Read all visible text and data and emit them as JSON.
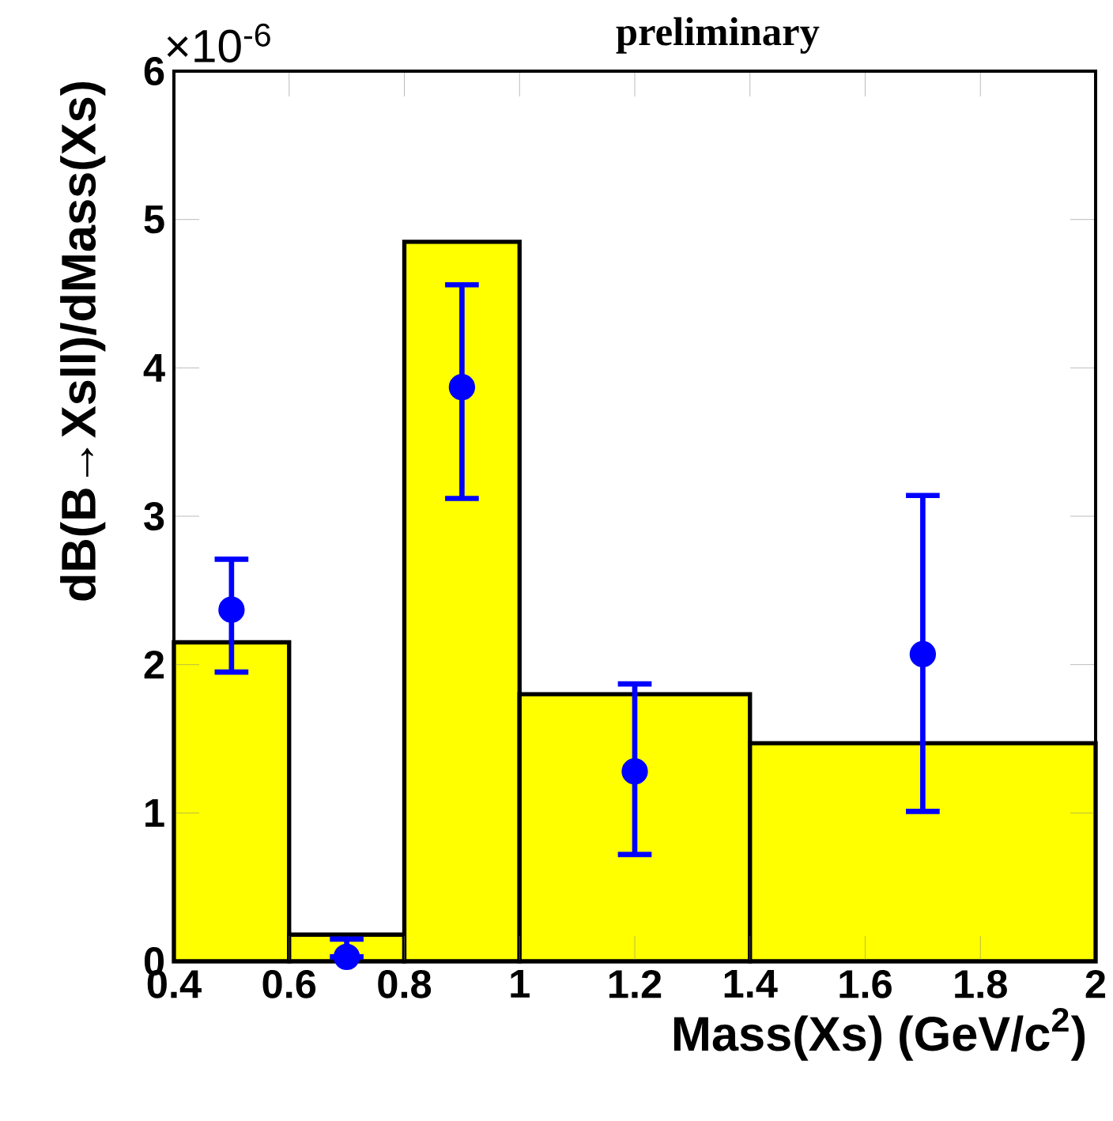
{
  "chart_data": {
    "type": "histogram",
    "xlabel": "Mass(Xs) (GeV/c$^{2}$)",
    "ylabel": "dB(B→Xsll)/dMass(Xs)",
    "bins": [
      0.4,
      0.6,
      0.8,
      1.0,
      1.4,
      2.0
    ],
    "values": [
      2.15,
      0.18,
      4.85,
      1.8,
      1.47
    ],
    "color": "#ffff00",
    "series": [
      {
        "type": "scatter",
        "color": "#0000ff",
        "x": [
          0.5,
          0.7,
          0.9,
          1.2,
          1.7
        ],
        "values": [
          2.37,
          0.03,
          3.87,
          1.28,
          2.07
        ],
        "errors": [
          [
            1.95,
            2.71
          ],
          [
            0.03,
            0.15
          ],
          [
            3.12,
            4.56
          ],
          [
            0.72,
            1.87
          ],
          [
            1.01,
            3.14
          ]
        ]
      }
    ],
    "xlim": [
      0.4,
      2.0
    ],
    "ylim": [
      0,
      6
    ],
    "xticks": [
      0.4,
      0.6,
      0.8,
      1,
      1.2,
      1.4,
      1.6,
      1.8,
      2
    ],
    "yticks": [
      0,
      1,
      2,
      3,
      4,
      5,
      6
    ],
    "marker": "circle",
    "grid": false,
    "annotations": [
      "×10$^{-6}$",
      "preliminary"
    ]
  }
}
